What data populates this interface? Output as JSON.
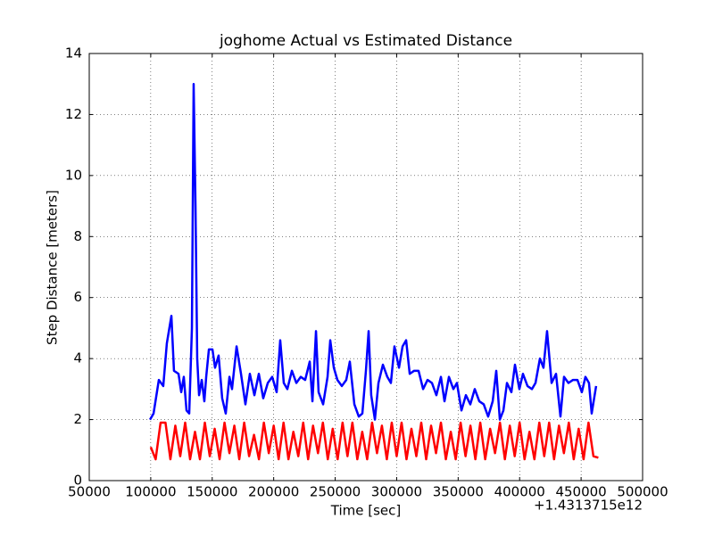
{
  "chart_data": {
    "type": "line",
    "title": "joghome Actual vs Estimated Distance",
    "x_label": "Time [sec]",
    "y_label": "Step Distance [meters]",
    "x_offset_label": "+1.4313715e12",
    "xlim": [
      50000,
      500000
    ],
    "ylim": [
      0,
      14
    ],
    "xticks": [
      50000,
      100000,
      150000,
      200000,
      250000,
      300000,
      350000,
      400000,
      450000,
      500000
    ],
    "yticks": [
      0,
      2,
      4,
      6,
      8,
      10,
      12,
      14
    ],
    "grid": true,
    "series": [
      {
        "color": "#0000ff",
        "x": [
          99400,
          102300,
          106600,
          110200,
          113100,
          116800,
          118900,
          122600,
          124800,
          126900,
          129100,
          131300,
          133500,
          134900,
          136400,
          137800,
          139300,
          141500,
          143600,
          145100,
          147300,
          150200,
          152300,
          155200,
          158100,
          161000,
          164000,
          166100,
          169800,
          173400,
          177000,
          180600,
          184300,
          187900,
          191500,
          195200,
          198800,
          202400,
          205300,
          208200,
          211100,
          214800,
          218400,
          222000,
          225600,
          229300,
          231500,
          234400,
          236500,
          240200,
          243800,
          246000,
          248900,
          251800,
          255400,
          259000,
          261900,
          265600,
          269200,
          272100,
          275000,
          277200,
          279300,
          282300,
          285200,
          288800,
          292400,
          295300,
          298200,
          301900,
          304800,
          307700,
          310600,
          314200,
          317800,
          321500,
          325100,
          328700,
          332300,
          336000,
          338900,
          342500,
          346100,
          349000,
          352700,
          356300,
          359900,
          363500,
          367200,
          370800,
          374400,
          378100,
          381000,
          383900,
          386800,
          389700,
          393300,
          396200,
          399800,
          402700,
          406400,
          410000,
          412900,
          416500,
          419400,
          422300,
          426000,
          429600,
          433200,
          436100,
          439700,
          443400,
          447000,
          450600,
          453500,
          456400,
          458600,
          462200
        ],
        "values": [
          2.0,
          2.2,
          3.3,
          3.1,
          4.5,
          5.4,
          3.6,
          3.5,
          2.9,
          3.4,
          2.3,
          2.2,
          5.0,
          13.0,
          9.0,
          4.0,
          2.8,
          3.3,
          2.6,
          3.4,
          4.3,
          4.3,
          3.7,
          4.1,
          2.7,
          2.2,
          3.4,
          3.0,
          4.4,
          3.5,
          2.5,
          3.5,
          2.8,
          3.5,
          2.7,
          3.2,
          3.4,
          2.9,
          4.6,
          3.2,
          3.0,
          3.6,
          3.2,
          3.4,
          3.3,
          3.9,
          2.6,
          4.9,
          2.9,
          2.5,
          3.4,
          4.6,
          3.7,
          3.3,
          3.1,
          3.3,
          3.9,
          2.5,
          2.1,
          2.2,
          3.6,
          4.9,
          2.8,
          2.0,
          3.2,
          3.8,
          3.4,
          3.2,
          4.4,
          3.7,
          4.4,
          4.6,
          3.5,
          3.6,
          3.6,
          3.0,
          3.3,
          3.2,
          2.8,
          3.4,
          2.6,
          3.4,
          3.0,
          3.2,
          2.3,
          2.8,
          2.5,
          3.0,
          2.6,
          2.5,
          2.1,
          2.6,
          3.6,
          2.0,
          2.3,
          3.2,
          2.9,
          3.8,
          3.0,
          3.5,
          3.1,
          3.0,
          3.2,
          4.0,
          3.7,
          4.9,
          3.2,
          3.5,
          2.1,
          3.4,
          3.2,
          3.3,
          3.3,
          2.9,
          3.4,
          3.2,
          2.2,
          3.1
        ]
      },
      {
        "color": "#ff0000",
        "x": [
          100000,
          104000,
          108000,
          112000,
          116000,
          120000,
          124000,
          128000,
          132000,
          136000,
          140000,
          144000,
          148000,
          152000,
          156000,
          160000,
          164000,
          168000,
          172000,
          176000,
          180000,
          184000,
          188000,
          192000,
          196000,
          200000,
          204000,
          208000,
          212000,
          216000,
          220000,
          224000,
          228000,
          232000,
          236000,
          240000,
          244000,
          248000,
          252000,
          256000,
          260000,
          264000,
          268000,
          272000,
          276000,
          280000,
          284000,
          288000,
          292000,
          296000,
          300000,
          304000,
          308000,
          312000,
          316000,
          320000,
          324000,
          328000,
          332000,
          336000,
          340000,
          344000,
          348000,
          352000,
          356000,
          360000,
          364000,
          368000,
          372000,
          376000,
          380000,
          384000,
          388000,
          392000,
          396000,
          400000,
          404000,
          408000,
          412000,
          416000,
          420000,
          424000,
          428000,
          432000,
          436000,
          440000,
          444000,
          448000,
          452000,
          456000,
          460000,
          464000
        ],
        "values": [
          1.1,
          0.7,
          1.9,
          1.9,
          0.7,
          1.8,
          0.8,
          1.9,
          0.7,
          1.6,
          0.7,
          1.9,
          0.8,
          1.7,
          0.7,
          1.9,
          0.9,
          1.8,
          0.7,
          1.9,
          0.8,
          1.5,
          0.7,
          1.9,
          0.9,
          1.8,
          0.7,
          1.9,
          0.7,
          1.6,
          0.8,
          1.9,
          0.7,
          1.8,
          0.9,
          1.9,
          0.7,
          1.7,
          0.7,
          1.9,
          0.8,
          1.9,
          0.7,
          1.6,
          0.7,
          1.9,
          0.9,
          1.8,
          0.7,
          1.9,
          0.8,
          1.9,
          0.7,
          1.7,
          0.8,
          1.9,
          0.7,
          1.8,
          0.9,
          1.9,
          0.7,
          1.6,
          0.7,
          1.9,
          0.8,
          1.8,
          0.7,
          1.9,
          0.7,
          1.7,
          0.9,
          1.9,
          0.7,
          1.8,
          0.8,
          1.9,
          0.7,
          1.6,
          0.7,
          1.9,
          0.8,
          1.9,
          0.7,
          1.8,
          0.9,
          1.9,
          0.7,
          1.7,
          0.7,
          1.9,
          0.8,
          0.75
        ]
      }
    ]
  }
}
